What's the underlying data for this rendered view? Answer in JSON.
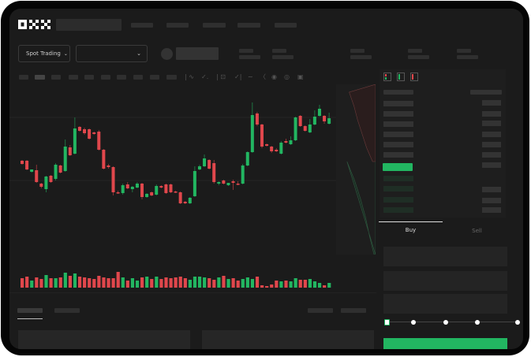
{
  "header": {
    "logo": "OKX",
    "spot_trading_label": "Spot Trading"
  },
  "toolbar": {
    "icons": [
      "indicator-icon",
      "chart-type-icon",
      "ruler-icon",
      "screenshot-icon",
      "settings-icon",
      "fullscreen-icon"
    ]
  },
  "orderbook": {
    "view_icons": [
      "both-sides-icon",
      "bids-only-icon",
      "asks-only-icon"
    ]
  },
  "trade_panel": {
    "tabs": [
      {
        "label": "Buy",
        "active": true
      },
      {
        "label": "Sell",
        "active": false
      }
    ],
    "slider_percent": 0
  },
  "colors": {
    "up": "#22b661",
    "down": "#e0474c",
    "background": "#1b1b1b",
    "accent": "#22b661"
  },
  "chart_data": {
    "type": "candlestick",
    "grid": true,
    "candles": [
      [
        57,
        58,
        52,
        53
      ],
      [
        57,
        58,
        45,
        46
      ],
      [
        43,
        46,
        42,
        46
      ],
      [
        45,
        52,
        29,
        30
      ],
      [
        28,
        29,
        22,
        24
      ],
      [
        21,
        38,
        17,
        37
      ],
      [
        38,
        39,
        29,
        30
      ],
      [
        34,
        54,
        32,
        52
      ],
      [
        51,
        52,
        41,
        42
      ],
      [
        44,
        84,
        43,
        75
      ],
      [
        74,
        77,
        63,
        64
      ],
      [
        66,
        112,
        65,
        98
      ],
      [
        100,
        101,
        94,
        95
      ],
      [
        97,
        99,
        90,
        92
      ],
      [
        97,
        98,
        84,
        85
      ],
      [
        93,
        94,
        90,
        91
      ],
      [
        94,
        96,
        70,
        71
      ],
      [
        71,
        72,
        46,
        47
      ],
      [
        51,
        53,
        47,
        49
      ],
      [
        49,
        50,
        13,
        17
      ],
      [
        17,
        19,
        15,
        16
      ],
      [
        16,
        28,
        14,
        26
      ],
      [
        27,
        30,
        21,
        22
      ],
      [
        21,
        25,
        17,
        24
      ],
      [
        23,
        30,
        22,
        28
      ],
      [
        28,
        29,
        8,
        11
      ],
      [
        11,
        16,
        10,
        15
      ],
      [
        17,
        18,
        12,
        13
      ],
      [
        14,
        27,
        13,
        25
      ],
      [
        25,
        26,
        22,
        23
      ],
      [
        27,
        28,
        15,
        16
      ],
      [
        27,
        28,
        16,
        17
      ],
      [
        18,
        19,
        16,
        17
      ],
      [
        17,
        18,
        2,
        3
      ],
      [
        5,
        6,
        2,
        3
      ],
      [
        3,
        11,
        2,
        10
      ],
      [
        12,
        50,
        11,
        44
      ],
      [
        46,
        52,
        45,
        50
      ],
      [
        50,
        65,
        49,
        60
      ],
      [
        58,
        59,
        46,
        47
      ],
      [
        54,
        58,
        28,
        30
      ],
      [
        28,
        31,
        26,
        30
      ],
      [
        32,
        33,
        27,
        28
      ],
      [
        26,
        29,
        25,
        29
      ],
      [
        31,
        33,
        20,
        29
      ],
      [
        28,
        31,
        26,
        27
      ],
      [
        28,
        53,
        27,
        51
      ],
      [
        51,
        69,
        50,
        68
      ],
      [
        68,
        131,
        67,
        115
      ],
      [
        117,
        119,
        101,
        103
      ],
      [
        103,
        104,
        73,
        75
      ],
      [
        78,
        79,
        75,
        76
      ],
      [
        75,
        76,
        67,
        69
      ],
      [
        71,
        73,
        68,
        69
      ],
      [
        66,
        82,
        65,
        80
      ],
      [
        82,
        85,
        79,
        80
      ],
      [
        78,
        88,
        77,
        83
      ],
      [
        83,
        113,
        82,
        112
      ],
      [
        114,
        115,
        100,
        101
      ],
      [
        101,
        102,
        94,
        95
      ],
      [
        93,
        110,
        92,
        103
      ],
      [
        103,
        121,
        102,
        113
      ],
      [
        114,
        128,
        113,
        123
      ],
      [
        114,
        115,
        104,
        107
      ],
      [
        104,
        118,
        103,
        111
      ]
    ],
    "candle_fields": [
      "open",
      "high",
      "low",
      "close"
    ],
    "volume": [
      12,
      14,
      9,
      13,
      11,
      16,
      12,
      12,
      13,
      19,
      15,
      18,
      14,
      13,
      12,
      11,
      15,
      13,
      12,
      12,
      20,
      13,
      9,
      12,
      9,
      13,
      14,
      11,
      14,
      11,
      13,
      12,
      13,
      14,
      12,
      10,
      14,
      14,
      13,
      12,
      10,
      13,
      15,
      11,
      12,
      9,
      11,
      13,
      11,
      14,
      3,
      2,
      4,
      9,
      8,
      9,
      8,
      12,
      10,
      10,
      11,
      8,
      6,
      3,
      6
    ],
    "depth": {
      "asks": [
        [
          0,
          0.1
        ],
        [
          0.2,
          0.3
        ],
        [
          0.4,
          0.45
        ],
        [
          0.6,
          0.6
        ],
        [
          0.8,
          0.72
        ],
        [
          1,
          0.88
        ]
      ],
      "bids": [
        [
          0,
          0.1
        ],
        [
          0.2,
          0.35
        ],
        [
          0.4,
          0.55
        ],
        [
          0.6,
          0.72
        ],
        [
          0.8,
          0.85
        ],
        [
          1,
          1
        ]
      ]
    }
  }
}
